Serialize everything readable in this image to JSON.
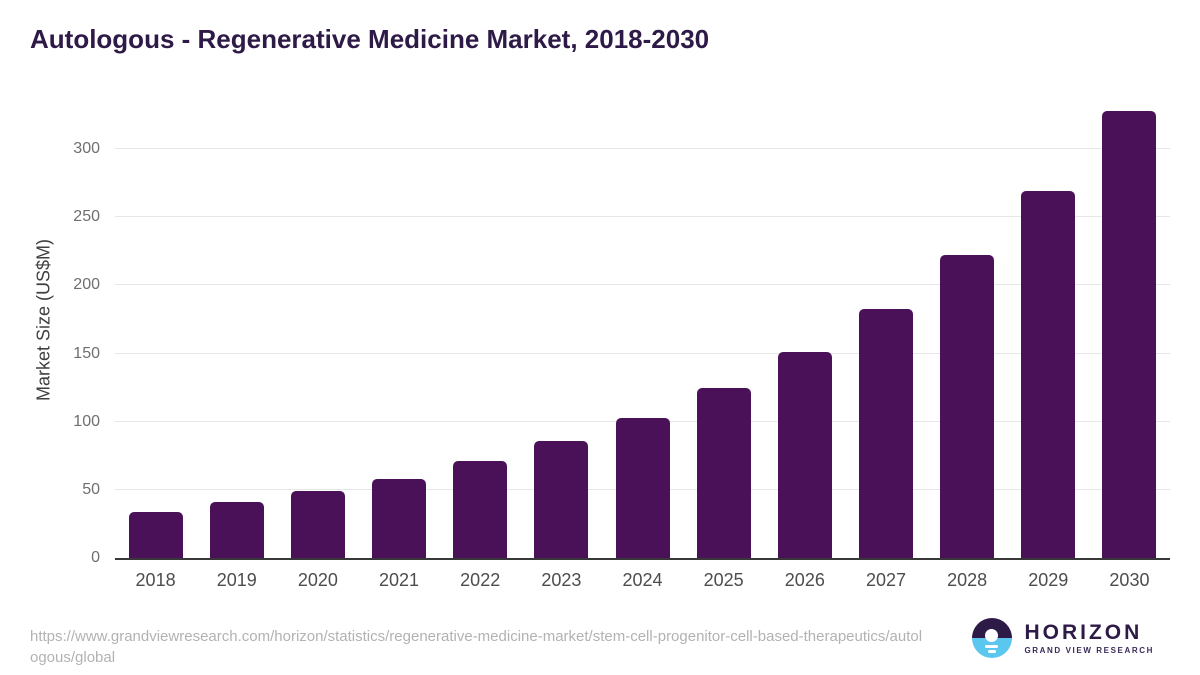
{
  "chart_data": {
    "type": "bar",
    "title": "Autologous - Regenerative Medicine Market, 2018-2030",
    "categories": [
      "2018",
      "2019",
      "2020",
      "2021",
      "2022",
      "2023",
      "2024",
      "2025",
      "2026",
      "2027",
      "2028",
      "2029",
      "2030"
    ],
    "values": [
      34,
      41,
      49,
      58,
      71,
      86,
      103,
      125,
      151,
      183,
      222,
      269,
      328
    ],
    "xlabel": "",
    "ylabel": "Market Size (US$M)",
    "ylim": [
      0,
      336
    ],
    "yticks": [
      0,
      50,
      100,
      150,
      200,
      250,
      300
    ],
    "grid": true,
    "legend": false,
    "bar_color": "#4A1159"
  },
  "footer": {
    "source_url": "https://www.grandviewresearch.com/horizon/statistics/regenerative-medicine-market/stem-cell-progenitor-cell-based-therapeutics/autologous/global",
    "logo": {
      "brand": "HORIZON",
      "sub_brand": "GRAND VIEW RESEARCH"
    }
  },
  "colors": {
    "bar": "#4A1159",
    "brand_purple": "#2E1A47",
    "logo_blue": "#5BC6EE",
    "gridline": "#E6E6E6",
    "axis_line": "#383838",
    "tick_text": "#6F6F6F",
    "source_text": "#B2B2B2"
  }
}
